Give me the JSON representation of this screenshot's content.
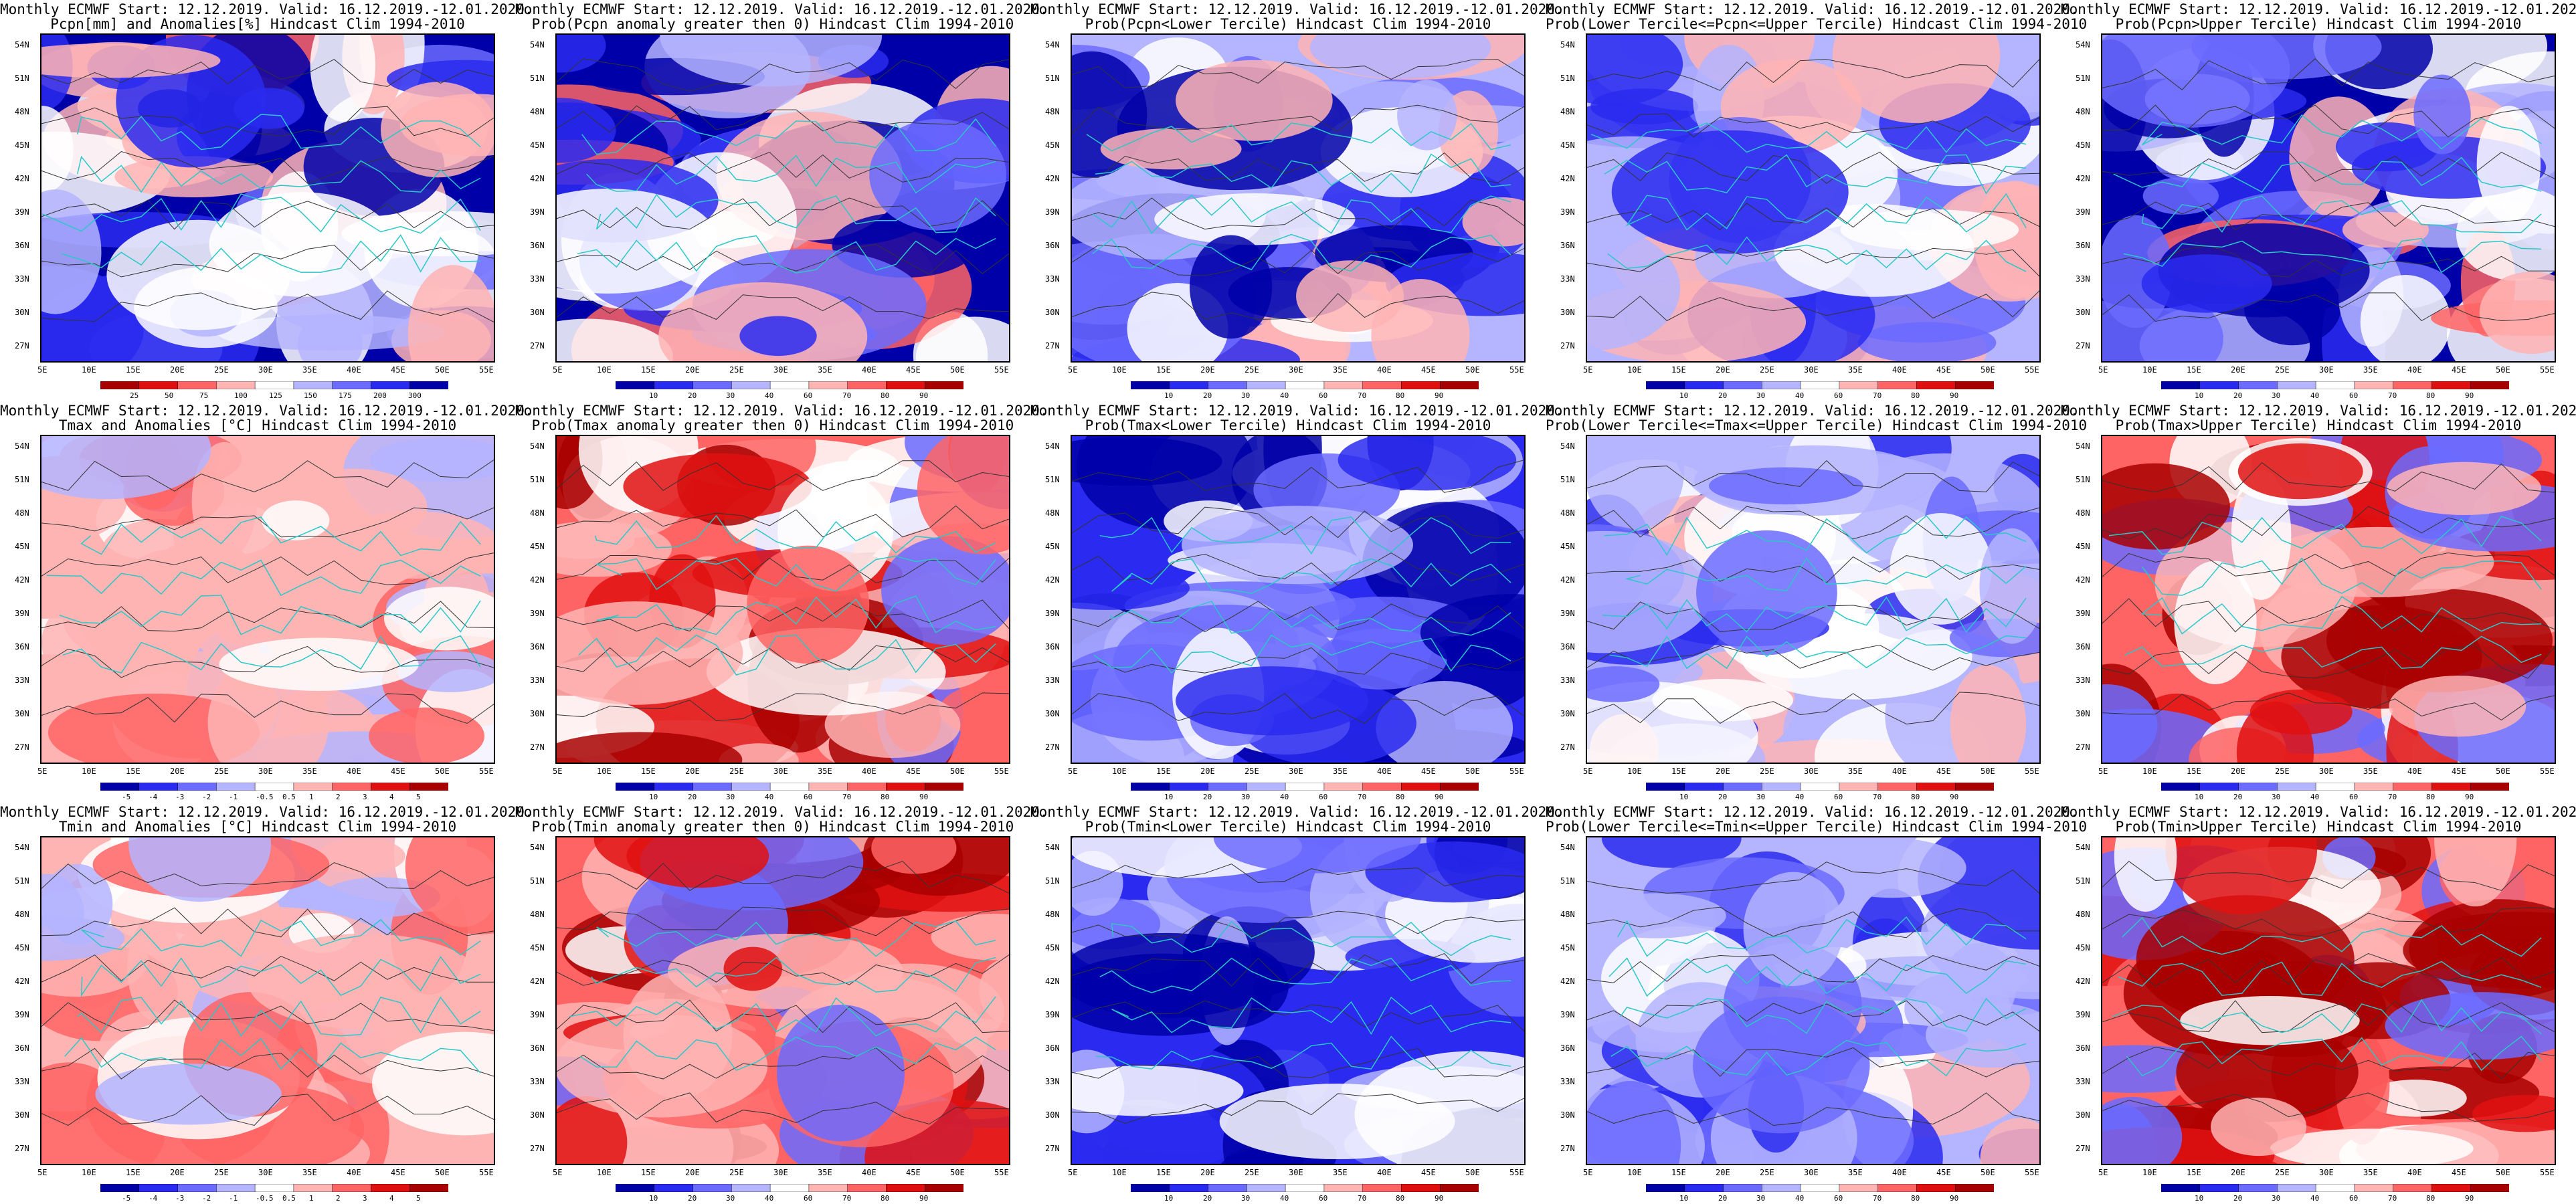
{
  "title_line1": "Monthly ECMWF Start: 12.12.2019. Valid: 16.12.2019.-12.01.2020.",
  "lat_labels": [
    "54N",
    "51N",
    "48N",
    "45N",
    "42N",
    "39N",
    "36N",
    "33N",
    "30N",
    "27N"
  ],
  "lon_labels": [
    "5E",
    "10E",
    "15E",
    "20E",
    "25E",
    "30E",
    "35E",
    "40E",
    "45E",
    "50E",
    "55E"
  ],
  "colorbars": {
    "pcpn_anom": [
      "25",
      "50",
      "75",
      "100",
      "125",
      "150",
      "175",
      "200",
      "300"
    ],
    "prob": [
      "10",
      "20",
      "30",
      "40",
      "60",
      "70",
      "80",
      "90"
    ],
    "temp_anom": [
      "-5",
      "-4",
      "-3",
      "-2",
      "-1",
      "-0.5",
      "0.5",
      "1",
      "2",
      "3",
      "4",
      "5"
    ]
  },
  "panels": [
    {
      "title2": "Pcpn[mm] and Anomalies[%] Hindcast Clim 1994-2010",
      "cbar": "pcpn_anom",
      "scheme": "pcpn"
    },
    {
      "title2": "Prob(Pcpn anomaly greater then 0) Hindcast Clim 1994-2010",
      "cbar": "prob",
      "scheme": "pcpn"
    },
    {
      "title2": "Prob(Pcpn<Lower Tercile) Hindcast Clim 1994-2010",
      "cbar": "prob",
      "scheme": "pcpn_low"
    },
    {
      "title2": "Prob(Lower Tercile<=Pcpn<=Upper Tercile) Hindcast Clim 1994-2010",
      "cbar": "prob",
      "scheme": "mid"
    },
    {
      "title2": "Prob(Pcpn>Upper Tercile) Hindcast Clim 1994-2010",
      "cbar": "prob",
      "scheme": "pcpn"
    },
    {
      "title2": "Tmax and Anomalies [°C] Hindcast Clim 1994-2010",
      "cbar": "temp_anom",
      "scheme": "warm_light"
    },
    {
      "title2": "Prob(Tmax anomaly greater then 0) Hindcast Clim 1994-2010",
      "cbar": "prob",
      "scheme": "warm"
    },
    {
      "title2": "Prob(Tmax<Lower Tercile) Hindcast Clim 1994-2010",
      "cbar": "prob",
      "scheme": "cold"
    },
    {
      "title2": "Prob(Lower Tercile<=Tmax<=Upper Tercile) Hindcast Clim 1994-2010",
      "cbar": "prob",
      "scheme": "mid"
    },
    {
      "title2": "Prob(Tmax>Upper Tercile) Hindcast Clim 1994-2010",
      "cbar": "prob",
      "scheme": "warm"
    },
    {
      "title2": "Tmin and Anomalies [°C] Hindcast Clim 1994-2010",
      "cbar": "temp_anom",
      "scheme": "warm_light"
    },
    {
      "title2": "Prob(Tmin anomaly greater then 0) Hindcast Clim 1994-2010",
      "cbar": "prob",
      "scheme": "warm"
    },
    {
      "title2": "Prob(Tmin<Lower Tercile) Hindcast Clim 1994-2010",
      "cbar": "prob",
      "scheme": "cold"
    },
    {
      "title2": "Prob(Lower Tercile<=Tmin<=Upper Tercile) Hindcast Clim 1994-2010",
      "cbar": "prob",
      "scheme": "mid"
    },
    {
      "title2": "Prob(Tmin>Upper Tercile) Hindcast Clim 1994-2010",
      "cbar": "prob",
      "scheme": "warm"
    }
  ],
  "colors": {
    "blue_dark": "#0000a8",
    "blue": "#2a2af0",
    "blue_mid": "#6b6bff",
    "blue_light": "#b4b4ff",
    "white": "#ffffff",
    "red_light": "#ffb4b4",
    "red_mid": "#ff6464",
    "red": "#e01010",
    "red_dark": "#a80000",
    "coast": "#2ac8c8"
  }
}
